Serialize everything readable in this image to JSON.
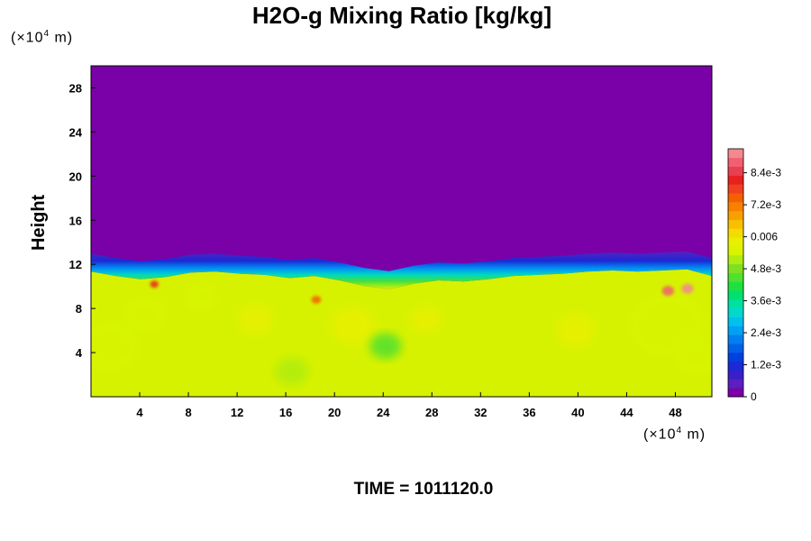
{
  "chart_data": {
    "type": "heatmap",
    "title": "H2O-g Mixing Ratio [kg/kg]",
    "ylabel": "Height",
    "xunit_prefix": "(×10",
    "xunit_exp": "4",
    "xunit_suffix": " m)",
    "yunit_prefix": "(×10",
    "yunit_exp": "4",
    "yunit_suffix": " m)",
    "footer": "TIME = 1011120.0",
    "xlim": [
      0,
      51
    ],
    "ylim": [
      0,
      30
    ],
    "xticks": [
      {
        "value": 4,
        "label": "4"
      },
      {
        "value": 8,
        "label": "8"
      },
      {
        "value": 12,
        "label": "12"
      },
      {
        "value": 16,
        "label": "16"
      },
      {
        "value": 20,
        "label": "20"
      },
      {
        "value": 24,
        "label": "24"
      },
      {
        "value": 28,
        "label": "28"
      },
      {
        "value": 32,
        "label": "32"
      },
      {
        "value": 36,
        "label": "36"
      },
      {
        "value": 40,
        "label": "40"
      },
      {
        "value": 44,
        "label": "44"
      },
      {
        "value": 48,
        "label": "48"
      }
    ],
    "yticks": [
      {
        "value": 4,
        "label": "4"
      },
      {
        "value": 8,
        "label": "8"
      },
      {
        "value": 12,
        "label": "12"
      },
      {
        "value": 16,
        "label": "16"
      },
      {
        "value": 20,
        "label": "20"
      },
      {
        "value": 24,
        "label": "24"
      },
      {
        "value": 28,
        "label": "28"
      }
    ],
    "colorbar": {
      "range": [
        0,
        0.0093
      ],
      "colors": [
        "#7a00a8",
        "#5a1fc0",
        "#3a1fc8",
        "#1a2ad4",
        "#0040e0",
        "#0060e8",
        "#0080f0",
        "#00a0f4",
        "#00c0ee",
        "#00d8d0",
        "#00e0a0",
        "#00e070",
        "#20e040",
        "#50e030",
        "#80e020",
        "#b0ec10",
        "#d8f400",
        "#e8f000",
        "#f4dc00",
        "#f8c000",
        "#f8a000",
        "#f88000",
        "#f46000",
        "#f04020",
        "#e82020",
        "#e84050",
        "#f06070",
        "#f48890"
      ],
      "ticks": [
        {
          "value": 0,
          "label": "0"
        },
        {
          "value": 0.0012,
          "label": "1.2e-3"
        },
        {
          "value": 0.0024,
          "label": "2.4e-3"
        },
        {
          "value": 0.0036,
          "label": "3.6e-3"
        },
        {
          "value": 0.0048,
          "label": "4.8e-3"
        },
        {
          "value": 0.006,
          "label": "0.006"
        },
        {
          "value": 0.0072,
          "label": "7.2e-3"
        },
        {
          "value": 0.0084,
          "label": "8.4e-3"
        }
      ]
    },
    "field": {
      "upper_color": "#7a00a8",
      "lower_color": "#d6f200",
      "lower_value": 0.0062,
      "interface_height": [
        12.0,
        11.6,
        11.3,
        11.5,
        11.9,
        12.0,
        11.8,
        11.7,
        11.4,
        11.6,
        11.2,
        10.7,
        10.4,
        10.9,
        11.2,
        11.1,
        11.3,
        11.6,
        11.7,
        11.8,
        12.0,
        12.1,
        12.0,
        12.1,
        12.2,
        11.6
      ],
      "anomalies": [
        {
          "x": 1.5,
          "y": 4.5,
          "r": 2.5,
          "value": 0.0054
        },
        {
          "x": 4.5,
          "y": 7.5,
          "r": 1.8,
          "value": 0.0055
        },
        {
          "x": 9.0,
          "y": 9.0,
          "r": 1.5,
          "value": 0.0056
        },
        {
          "x": 13.5,
          "y": 7.0,
          "r": 1.4,
          "value": 0.0058
        },
        {
          "x": 16.5,
          "y": 2.3,
          "r": 1.4,
          "value": 0.0052
        },
        {
          "x": 21.5,
          "y": 6.5,
          "r": 1.8,
          "value": 0.0057
        },
        {
          "x": 24.2,
          "y": 4.6,
          "r": 1.3,
          "value": 0.0046
        },
        {
          "x": 27.5,
          "y": 7.0,
          "r": 1.3,
          "value": 0.0057
        },
        {
          "x": 39.8,
          "y": 6.0,
          "r": 1.6,
          "value": 0.0058
        },
        {
          "x": 47.3,
          "y": 6.5,
          "r": 3.2,
          "value": 0.0054
        },
        {
          "x": 49.8,
          "y": 3.5,
          "r": 1.8,
          "value": 0.0055
        },
        {
          "x": 47.4,
          "y": 9.6,
          "r": 0.5,
          "value": 0.0088
        },
        {
          "x": 49.0,
          "y": 9.8,
          "r": 0.5,
          "value": 0.009
        },
        {
          "x": 5.2,
          "y": 10.2,
          "r": 0.35,
          "value": 0.0082
        },
        {
          "x": 18.5,
          "y": 8.8,
          "r": 0.4,
          "value": 0.0074
        }
      ]
    }
  }
}
